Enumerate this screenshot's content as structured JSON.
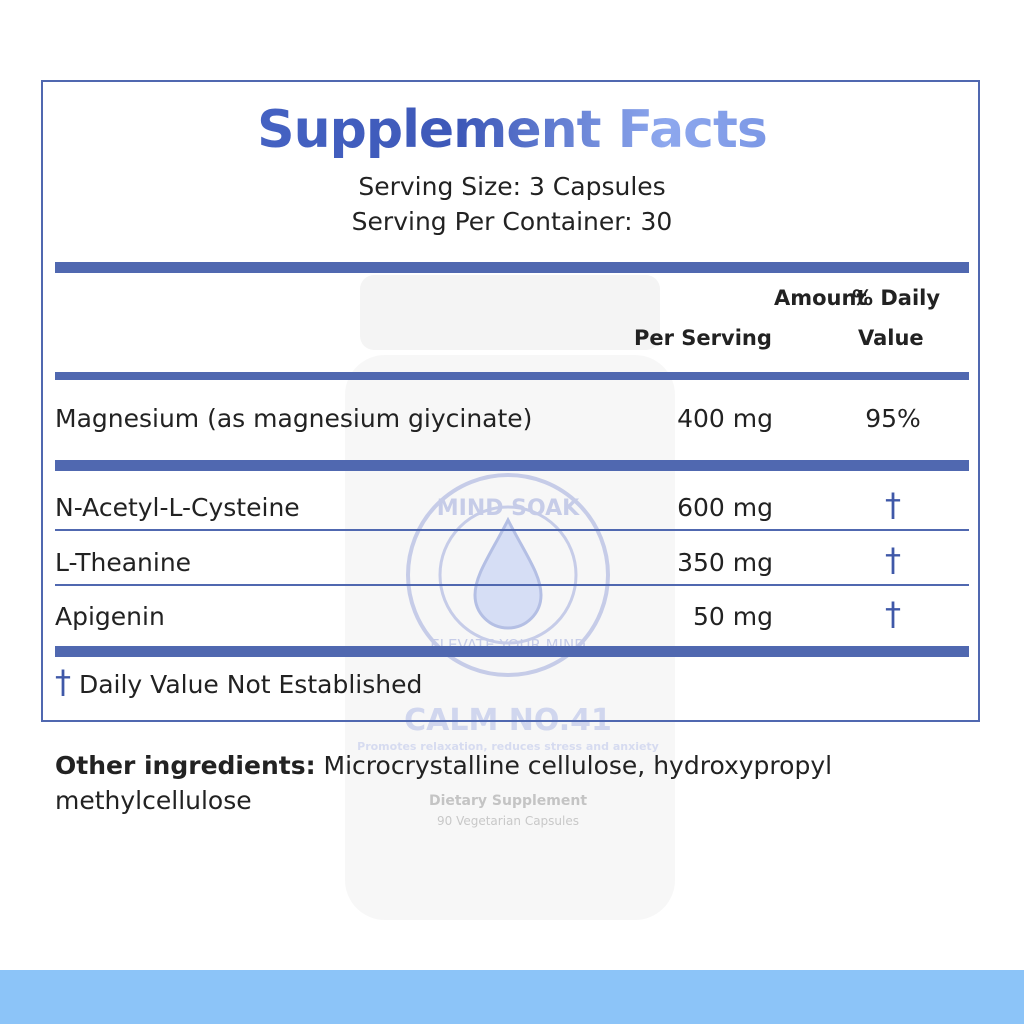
{
  "title": "Supplement Facts",
  "serving_size": "Serving Size: 3 Capsules",
  "servings_per_container": "Serving Per Container: 30",
  "headers": {
    "amount_line1": "Amount",
    "pct_line1": "% Daily",
    "amount_line2": "Per Serving",
    "pct_line2": "Value"
  },
  "primary": {
    "name": "Magnesium (as magnesium giycinate)",
    "amount": "400 mg",
    "dv": "95%"
  },
  "ingredients": [
    {
      "name": "N-Acetyl-L-Cysteine",
      "amount": "600 mg",
      "dv": "†"
    },
    {
      "name": "L-Theanine",
      "amount": "350 mg",
      "dv": "†"
    },
    {
      "name": "Apigenin",
      "amount": "50 mg",
      "dv": "†"
    }
  ],
  "footnote": {
    "symbol": "†",
    "text": "Daily Value Not Established"
  },
  "other_ingredients": {
    "label": "Other ingredients:",
    "text": " Microcrystalline cellulose, hydroxypropyl methylcellulose"
  },
  "bottle_label": {
    "brand": "MIND SOAK",
    "tagline": "ELEVATE YOUR MIND",
    "product": "CALM NO.41",
    "claim": "Promotes relaxation, reduces stress and anxiety",
    "type": "Dietary Supplement",
    "count": "90 Vegetarian Capsules"
  },
  "colors": {
    "accent": "#5068b0",
    "band": "#8cc4f8"
  }
}
